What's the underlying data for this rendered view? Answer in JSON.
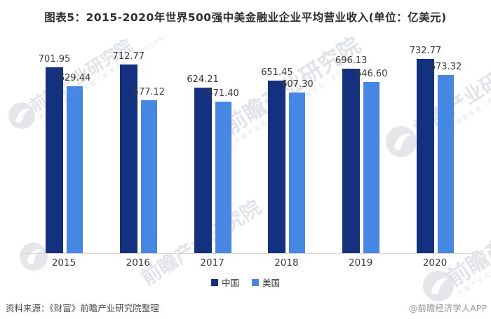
{
  "title": "图表5：2015-2020年世界500强中美金融业企业平均营业收入(单位：亿美元)",
  "chart_data": {
    "type": "bar",
    "categories": [
      "2015",
      "2016",
      "2017",
      "2018",
      "2019",
      "2020"
    ],
    "series": [
      {
        "name": "中国",
        "color": "#13317e",
        "values": [
          701.95,
          712.77,
          624.21,
          651.45,
          696.13,
          732.77
        ]
      },
      {
        "name": "美国",
        "color": "#4587e2",
        "values": [
          629.44,
          577.12,
          571.4,
          607.3,
          646.6,
          673.32
        ]
      }
    ],
    "title": "图表5：2015-2020年世界500强中美金融业企业平均营业收入(单位：亿美元)",
    "xlabel": "",
    "ylabel": "",
    "ylim": [
      0,
      760
    ],
    "grid": false,
    "legend_position": "bottom",
    "value_labels": true,
    "value_label_decimals": 2
  },
  "legend": {
    "items": [
      {
        "label": "中国",
        "color": "#13317e"
      },
      {
        "label": "美国",
        "color": "#4587e2"
      }
    ]
  },
  "footer": {
    "source": "资料来源：《财富》前瞻产业研究院整理",
    "credit": "@前瞻经济学人APP"
  },
  "watermark": {
    "text": "前瞻产业研究院",
    "subtext": "中国产业咨询领导者（股票代码：839599）",
    "logo_name": "qianzhan-bird-logo",
    "color": "#ced2d9"
  }
}
